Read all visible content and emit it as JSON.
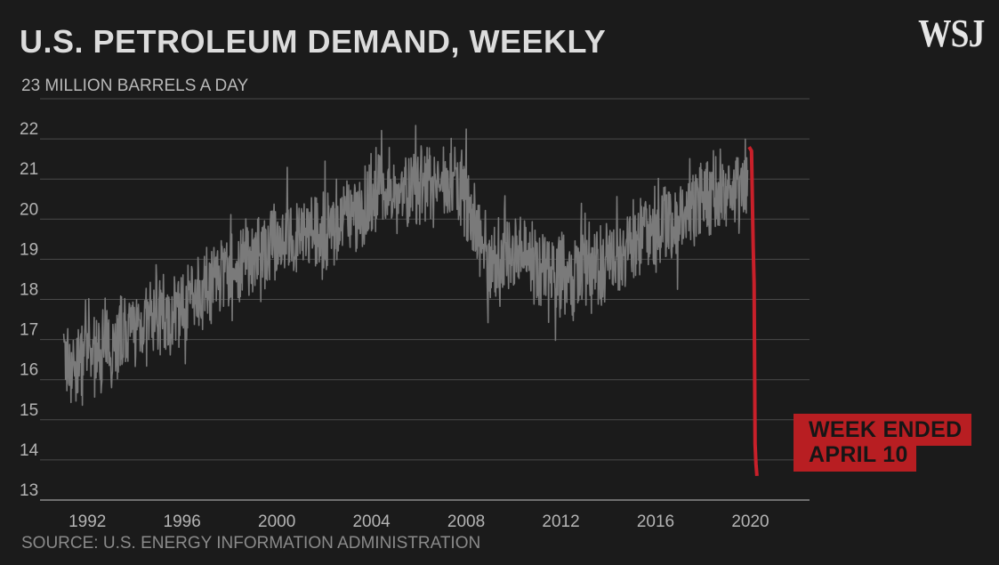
{
  "header": {
    "title": "U.S. PETROLEUM DEMAND, WEEKLY",
    "unit_label": "23 MILLION BARRELS A DAY",
    "logo": "WSJ"
  },
  "footer": {
    "source": "SOURCE: U.S. ENERGY INFORMATION ADMINISTRATION"
  },
  "annotation": {
    "line1": "WEEK ENDED",
    "line2": "APRIL 10"
  },
  "colors": {
    "series": "#7a7a7a",
    "highlight": "#c8202a",
    "grid": "#4a4a4a",
    "background": "#1b1b1b"
  },
  "chart_data": {
    "type": "line",
    "title": "U.S. PETROLEUM DEMAND, WEEKLY",
    "ylabel": "23 MILLION BARRELS A DAY",
    "xlabel": "",
    "ylim": [
      13,
      23
    ],
    "xlim": [
      1990,
      2022.5
    ],
    "y_ticks": [
      13,
      14,
      15,
      16,
      17,
      18,
      19,
      20,
      21,
      22
    ],
    "x_ticks": [
      1992,
      1996,
      2000,
      2004,
      2008,
      2012,
      2016,
      2020
    ],
    "grid": true,
    "series": [
      {
        "color": "#7a7a7a",
        "x": [
          1991.0,
          1991.5,
          1992.0,
          1992.5,
          1993.0,
          1993.5,
          1994.0,
          1994.5,
          1995.0,
          1995.5,
          1996.0,
          1996.5,
          1997.0,
          1997.5,
          1998.0,
          1998.5,
          1999.0,
          1999.5,
          2000.0,
          2000.5,
          2001.0,
          2001.5,
          2002.0,
          2002.5,
          2003.0,
          2003.5,
          2004.0,
          2004.5,
          2005.0,
          2005.5,
          2006.0,
          2006.5,
          2007.0,
          2007.5,
          2008.0,
          2008.5,
          2009.0,
          2009.5,
          2010.0,
          2010.5,
          2011.0,
          2011.5,
          2012.0,
          2012.5,
          2013.0,
          2013.5,
          2014.0,
          2014.5,
          2015.0,
          2015.5,
          2016.0,
          2016.5,
          2017.0,
          2017.5,
          2018.0,
          2018.5,
          2019.0,
          2019.5,
          2019.9
        ],
        "values": [
          16.6,
          16.3,
          16.7,
          16.6,
          16.9,
          17.1,
          17.3,
          17.4,
          17.6,
          17.5,
          17.9,
          18.1,
          18.3,
          18.6,
          18.7,
          18.9,
          19.1,
          19.3,
          19.5,
          19.6,
          19.6,
          19.6,
          19.8,
          19.8,
          20.0,
          20.1,
          20.6,
          20.8,
          20.8,
          20.7,
          20.8,
          20.9,
          20.9,
          20.9,
          20.5,
          19.6,
          18.9,
          19.0,
          19.2,
          19.3,
          18.9,
          18.9,
          18.6,
          18.5,
          18.8,
          18.9,
          18.9,
          19.1,
          19.4,
          19.6,
          19.8,
          19.9,
          20.1,
          20.3,
          20.5,
          20.6,
          20.7,
          20.8,
          21.0
        ]
      },
      {
        "color": "#c8202a",
        "x": [
          2019.95,
          2020.05,
          2020.12,
          2020.16,
          2020.2,
          2020.24,
          2020.28
        ],
        "values": [
          21.8,
          21.7,
          19.3,
          18.4,
          14.4,
          13.9,
          13.6
        ]
      }
    ]
  }
}
